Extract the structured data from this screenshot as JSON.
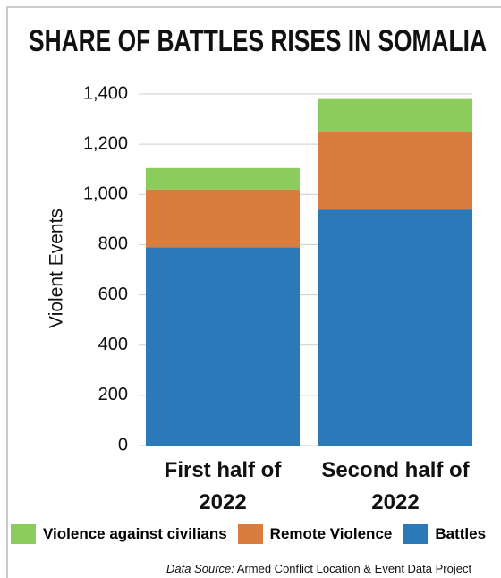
{
  "chart_data": {
    "type": "stacked_bar",
    "title": "SHARE OF BATTLES RISES IN SOMALIA",
    "ylabel": "Violent Events",
    "categories": [
      "First half of 2022",
      "Second half of 2022"
    ],
    "series": [
      {
        "name": "Battles",
        "color": "#2b79b9",
        "values": [
          790,
          940
        ]
      },
      {
        "name": "Remote Violence",
        "color": "#d97d3f",
        "values": [
          230,
          310
        ]
      },
      {
        "name": "Violence against civilians",
        "color": "#8ccc5c",
        "values": [
          85,
          130
        ]
      }
    ],
    "ylim": [
      0,
      1400
    ],
    "yticks": [
      0,
      200,
      400,
      600,
      800,
      {
        "value": 1000,
        "label": "1,000"
      },
      {
        "value": 1200,
        "label": "1,200"
      },
      {
        "value": 1400,
        "label": "1,400"
      }
    ],
    "grid": true,
    "source_label": "Data Source:",
    "source": "Armed Conflict Location & Event Data Project"
  }
}
